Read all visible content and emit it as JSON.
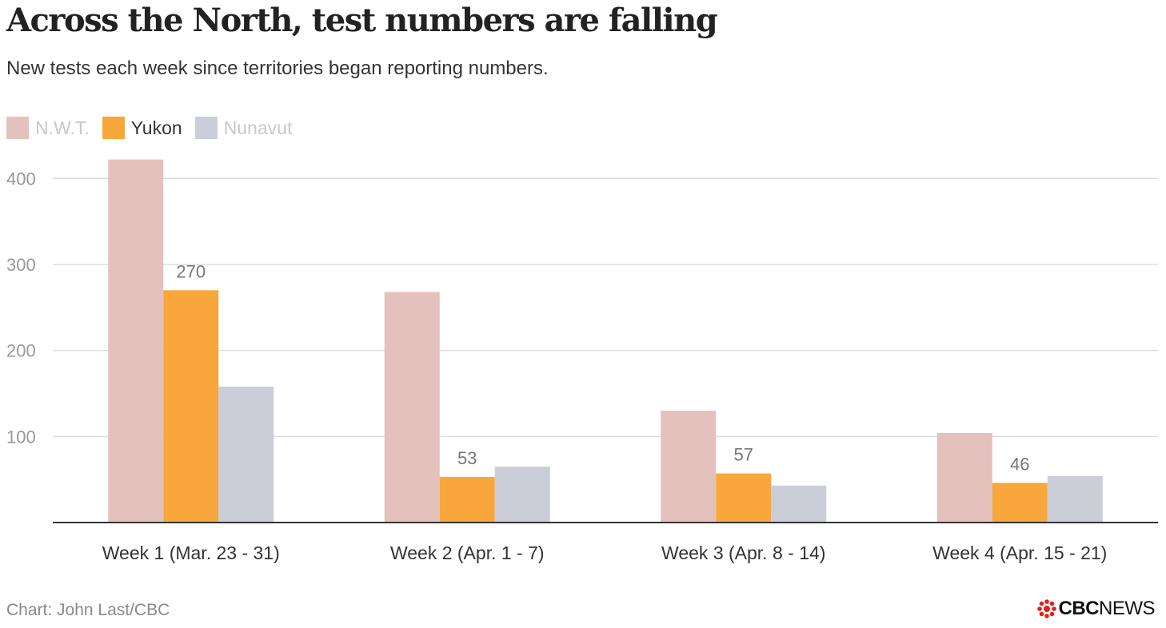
{
  "header": {
    "title": "Across the North, test numbers are falling",
    "subtitle": "New tests each week since territories began reporting numbers."
  },
  "legend": {
    "items": [
      {
        "label": "N.W.T.",
        "color": "#e5c1bd",
        "active": false
      },
      {
        "label": "Yukon",
        "color": "#f7a73b",
        "active": true
      },
      {
        "label": "Nunavut",
        "color": "#cbcdd9",
        "active": false
      }
    ]
  },
  "chart_data": {
    "type": "bar",
    "title": "Across the North, test numbers are falling",
    "subtitle": "New tests each week since territories began reporting numbers.",
    "categories": [
      "Week 1 (Mar. 23 - 31)",
      "Week 2 (Apr. 1 - 7)",
      "Week 3 (Apr. 8 - 14)",
      "Week 4 (Apr. 15 - 21)"
    ],
    "series": [
      {
        "name": "N.W.T.",
        "values": [
          422,
          268,
          130,
          104
        ],
        "color": "#e5c1bd"
      },
      {
        "name": "Yukon",
        "values": [
          270,
          53,
          57,
          46
        ],
        "color": "#f7a73b"
      },
      {
        "name": "Nunavut",
        "values": [
          158,
          65,
          43,
          54
        ],
        "color": "#cbcdd9"
      }
    ],
    "data_labels": {
      "series": "Yukon",
      "values": [
        "270",
        "53",
        "57",
        "46"
      ]
    },
    "yticks": [
      "100",
      "200",
      "300",
      "400"
    ],
    "ylim": [
      0,
      430
    ],
    "grid": true,
    "legend_position": "top-left"
  },
  "footer": {
    "source": "Chart: John Last/CBC",
    "logo_bold": "CBC",
    "logo_light": "NEWS",
    "logo_color": "#e0221b"
  }
}
